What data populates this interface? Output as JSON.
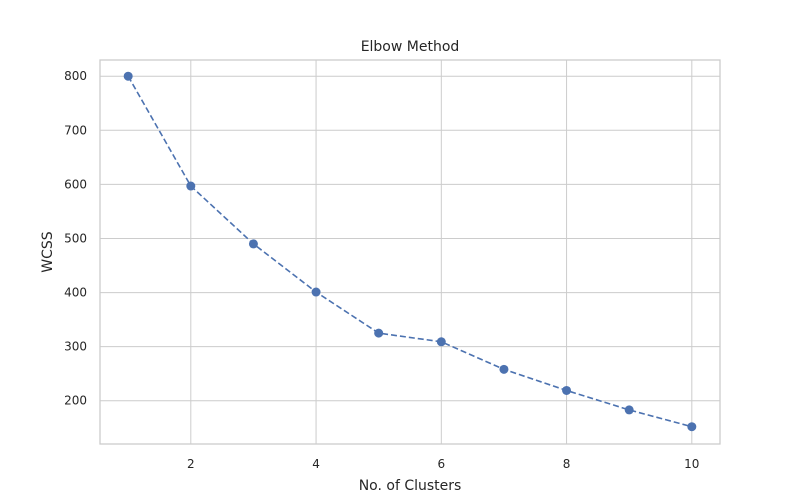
{
  "chart_data": {
    "type": "line",
    "title": "Elbow Method",
    "xlabel": "No. of Clusters",
    "ylabel": "WCSS",
    "x": [
      1,
      2,
      3,
      4,
      5,
      6,
      7,
      8,
      9,
      10
    ],
    "series": [
      {
        "values": [
          800,
          597,
          490,
          401,
          325,
          309,
          258,
          219,
          183,
          152
        ]
      }
    ],
    "xlim": [
      0.55,
      10.45
    ],
    "ylim": [
      120,
      830
    ],
    "xticks": [
      2,
      4,
      6,
      8,
      10
    ],
    "yticks": [
      200,
      300,
      400,
      500,
      600,
      700,
      800
    ],
    "grid": true,
    "line_style": "dashed",
    "marker": "circle",
    "color": "#4c72b0"
  }
}
